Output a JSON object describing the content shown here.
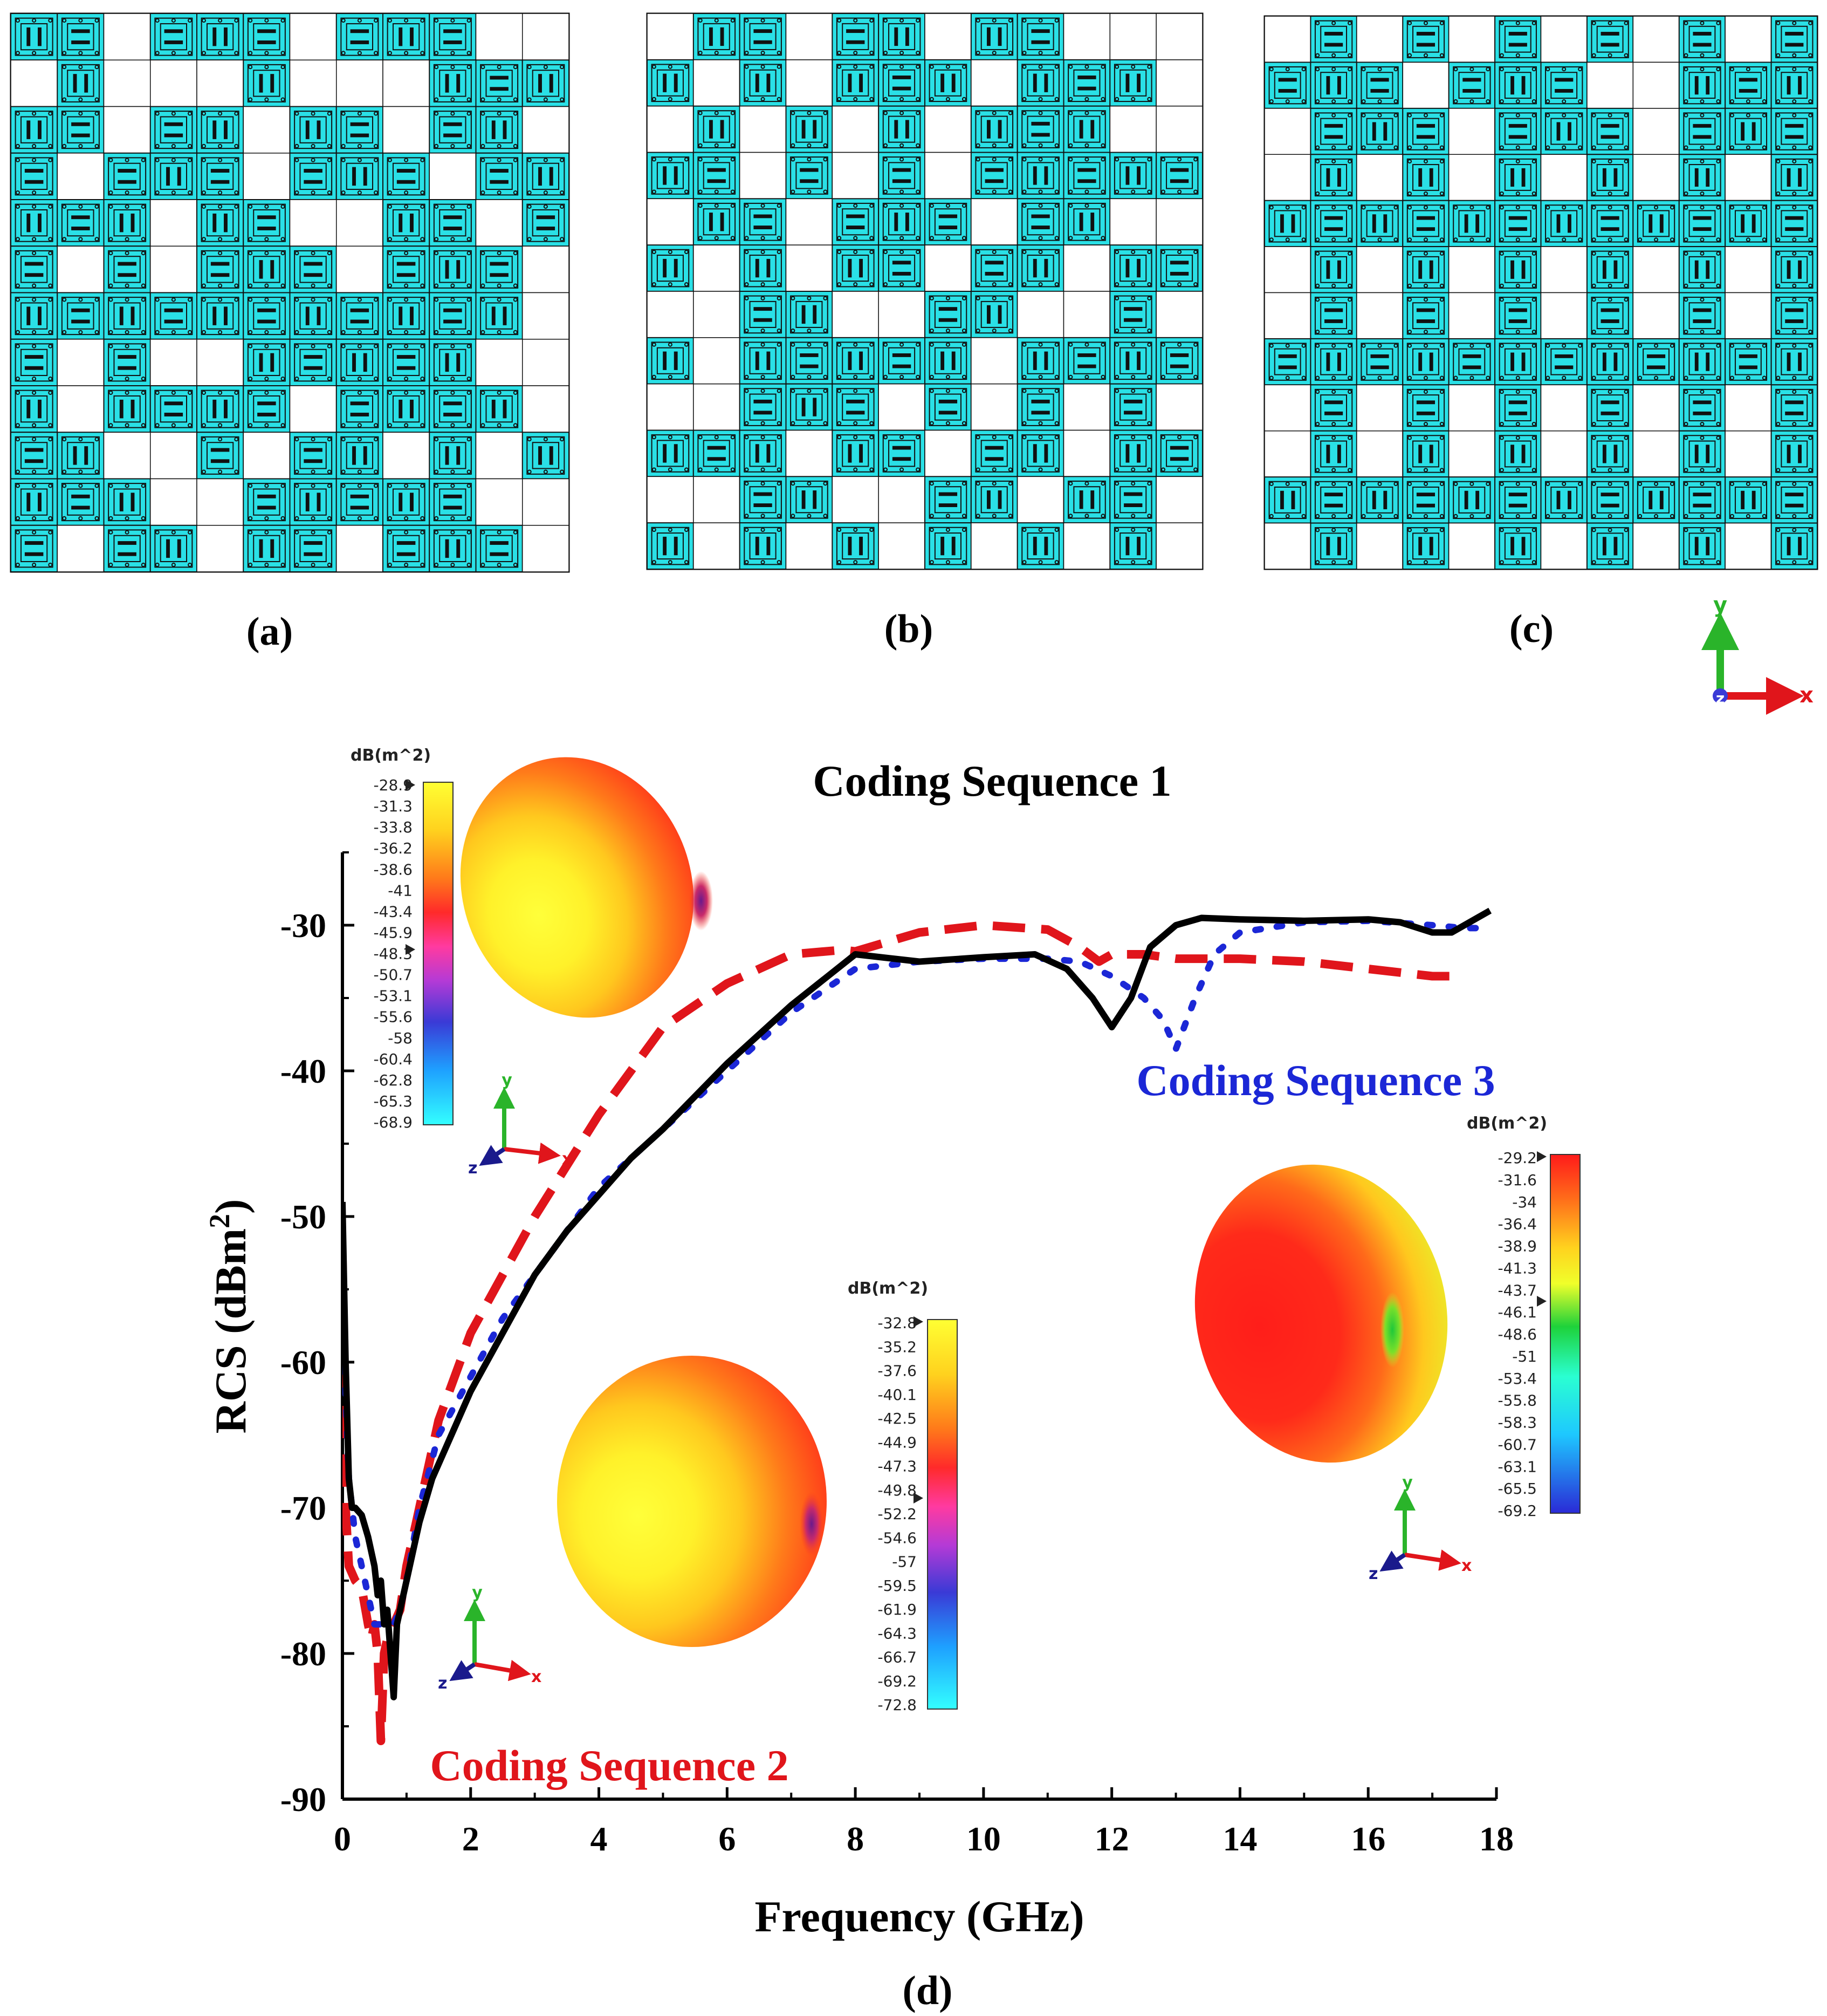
{
  "panels": [
    {
      "label": "(a)",
      "pattern": [
        "110111011100",
        "010001000111",
        "110110110110",
        "101110111011",
        "111011001101",
        "101011101110",
        "111111111110",
        "101001111100",
        "101111011110",
        "110010110101",
        "111001111100",
        "101101101110"
      ]
    },
    {
      "label": "(b)",
      "pattern": [
        "011011011000",
        "101011101110",
        "010101011100",
        "110101011111",
        "011011101100",
        "101011011011",
        "001100110010",
        "101111101111",
        "001110101010",
        "111011011011",
        "001100110110",
        "101010101010"
      ]
    },
    {
      "label": "(c)",
      "pattern": [
        "010101010101",
        "111011100111",
        "011101110111",
        "010101010101",
        "111111111111",
        "010101010101",
        "010101010101",
        "111111111111",
        "010101010101",
        "010101010101",
        "111111111111",
        "010101010101"
      ]
    }
  ],
  "axes_triad": {
    "y": "y",
    "x": "x",
    "z": "z"
  },
  "chart_data": {
    "type": "line",
    "title": "",
    "panel_label": "(d)",
    "xlabel": "Frequency (GHz)",
    "ylabel_main": "RCS (dBm",
    "ylabel_sup": "2",
    "ylabel_close": ")",
    "xlim": [
      0,
      18
    ],
    "ylim": [
      -90,
      -25
    ],
    "xticks": [
      0,
      2,
      4,
      6,
      8,
      10,
      12,
      14,
      16,
      18
    ],
    "yticks": [
      -90,
      -80,
      -70,
      -60,
      -50,
      -40,
      -30
    ],
    "series": [
      {
        "name": "Coding Sequence 1",
        "color": "#000000",
        "style": "solid",
        "x": [
          0,
          0.05,
          0.1,
          0.15,
          0.2,
          0.3,
          0.4,
          0.5,
          0.55,
          0.6,
          0.65,
          0.7,
          0.75,
          0.8,
          0.85,
          0.9,
          1.0,
          1.1,
          1.2,
          1.4,
          1.6,
          2.0,
          2.5,
          3.0,
          3.5,
          4.0,
          4.5,
          5.0,
          6.0,
          7.0,
          8.0,
          9.0,
          10.0,
          10.8,
          11.3,
          11.7,
          12.0,
          12.3,
          12.6,
          13.0,
          13.4,
          14.0,
          15.0,
          16.0,
          16.5,
          17.0,
          17.3,
          17.5,
          17.7,
          17.9
        ],
        "y": [
          -49,
          -60,
          -68,
          -70,
          -70,
          -70.5,
          -72,
          -74,
          -76,
          -75,
          -78,
          -77,
          -80,
          -83,
          -78,
          -77,
          -75,
          -73,
          -71,
          -68,
          -66,
          -62,
          -58,
          -54,
          -51,
          -48.5,
          -46,
          -44,
          -39.5,
          -35.5,
          -32,
          -32.5,
          -32.2,
          -32,
          -33,
          -35,
          -37,
          -35,
          -31.5,
          -30,
          -29.5,
          -29.6,
          -29.7,
          -29.6,
          -29.8,
          -30.5,
          -30.5,
          -30,
          -29.5,
          -29
        ]
      },
      {
        "name": "Coding Sequence 2",
        "color": "#e0151b",
        "style": "dash",
        "x": [
          0,
          0.05,
          0.1,
          0.2,
          0.3,
          0.4,
          0.45,
          0.5,
          0.55,
          0.6,
          0.65,
          0.7,
          0.8,
          0.9,
          1.0,
          1.2,
          1.5,
          2.0,
          3.0,
          4.0,
          5.0,
          6.0,
          7.0,
          7.8,
          8.0,
          9.0,
          10.0,
          11.0,
          11.5,
          11.8,
          12.0,
          12.5,
          13.0,
          14.0,
          15.0,
          16.0,
          17.0,
          17.4
        ],
        "y": [
          -53,
          -70,
          -74,
          -75,
          -75.5,
          -78,
          -79,
          -78,
          -80,
          -86,
          -80,
          -79,
          -78,
          -77,
          -74,
          -70,
          -64,
          -58,
          -50,
          -43,
          -37,
          -34,
          -32,
          -31.7,
          -31.8,
          -30.5,
          -30,
          -30.3,
          -31.5,
          -32.5,
          -32,
          -32,
          -32.3,
          -32.3,
          -32.5,
          -33,
          -33.5,
          -33.5
        ]
      },
      {
        "name": "Coding Sequence 3",
        "color": "#1b27d6",
        "style": "dot",
        "x": [
          0,
          0.05,
          0.1,
          0.2,
          0.3,
          0.5,
          0.6,
          0.7,
          0.8,
          0.9,
          1.0,
          1.2,
          1.5,
          2.0,
          2.5,
          3.0,
          4.0,
          5.0,
          6.0,
          7.0,
          8.0,
          9.0,
          10.0,
          11.0,
          11.5,
          12.0,
          12.5,
          12.8,
          13.0,
          13.3,
          13.6,
          14.0,
          15.0,
          16.0,
          17.0,
          17.5,
          17.8
        ],
        "y": [
          -50,
          -62,
          -68,
          -72,
          -74,
          -78,
          -78,
          -78,
          -78,
          -77,
          -75,
          -70,
          -65,
          -61,
          -57,
          -54,
          -48,
          -44,
          -40,
          -36,
          -33,
          -32.5,
          -32.3,
          -32.3,
          -32.5,
          -33.5,
          -35,
          -36.5,
          -38.5,
          -35,
          -32,
          -30.5,
          -29.8,
          -29.7,
          -30,
          -30.2,
          -30.2
        ]
      }
    ],
    "annotations": [
      {
        "text": "Coding Sequence 1",
        "color": "#000000"
      },
      {
        "text": "Coding Sequence 2",
        "color": "#e0151b"
      },
      {
        "text": "Coding Sequence 3",
        "color": "#1b27d6"
      }
    ],
    "colorbars": [
      {
        "unit": "dB(m^2)",
        "scheme": "yellow-red-cyan",
        "labels": [
          "-28.9",
          "-31.3",
          "-33.8",
          "-36.2",
          "-38.6",
          "-41",
          "-43.4",
          "-45.9",
          "-48.3",
          "-50.7",
          "-53.1",
          "-55.6",
          "-58",
          "-60.4",
          "-62.8",
          "-65.3",
          "-68.9"
        ]
      },
      {
        "unit": "dB(m^2)",
        "scheme": "yellow-red-cyan",
        "labels": [
          "-32.8",
          "-35.2",
          "-37.6",
          "-40.1",
          "-42.5",
          "-44.9",
          "-47.3",
          "-49.8",
          "-52.2",
          "-54.6",
          "-57",
          "-59.5",
          "-61.9",
          "-64.3",
          "-66.7",
          "-69.2",
          "-72.8"
        ]
      },
      {
        "unit": "dB(m^2)",
        "scheme": "red-green-blue",
        "labels": [
          "-29.2",
          "-31.6",
          "-34",
          "-36.4",
          "-38.9",
          "-41.3",
          "-43.7",
          "-46.1",
          "-48.6",
          "-51",
          "-53.4",
          "-55.8",
          "-58.3",
          "-60.7",
          "-63.1",
          "-65.5",
          "-69.2"
        ]
      }
    ]
  }
}
